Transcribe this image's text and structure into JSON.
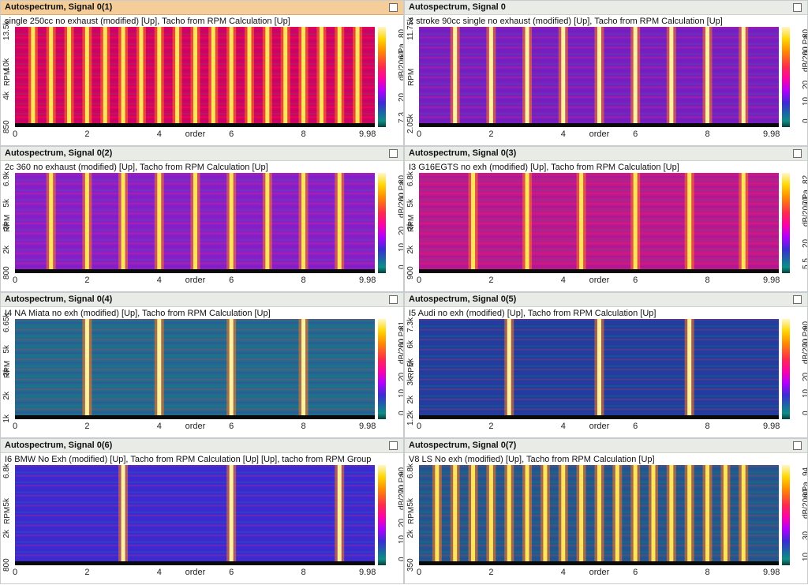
{
  "panels": [
    {
      "title": "Autospectrum, Signal 0(1)",
      "subtitle": "single 250cc no exhaust (modified) [Up], Tacho from RPM Calculation [Up]",
      "active": true,
      "y_ticks": [
        "13.5k",
        "10k",
        "4k",
        "850"
      ],
      "y_title": "RPM",
      "colorbar_labels": [
        "80",
        "60",
        "dB/20u Pa",
        "20",
        "7.3"
      ],
      "x_ticks": [
        "0",
        "2",
        "4",
        "6",
        "8"
      ],
      "x_title": "order",
      "x_end": "9.98",
      "spectrogram": {
        "bg": "#d9005a",
        "bands": [
          0.5,
          1.0,
          1.5,
          2.0,
          2.5,
          3.0,
          3.5,
          4.0,
          4.5,
          5.0,
          5.5,
          6.0,
          6.5,
          7.0,
          7.5,
          8.0,
          8.5,
          9.0,
          9.5
        ],
        "accent": "#ffe45c"
      }
    },
    {
      "title": "Autospectrum, Signal 0",
      "subtitle": "2 stroke 90cc single no exhaust (modified) [Up], Tacho from RPM Calculation [Up]",
      "active": false,
      "y_ticks": [
        "11.75k",
        "",
        "2.05k"
      ],
      "y_title": "RPM",
      "colorbar_labels": [
        "80",
        "60",
        "dB/20u Pa",
        "20",
        "10",
        "0"
      ],
      "x_ticks": [
        "0",
        "2",
        "4",
        "6",
        "8"
      ],
      "x_title": "order",
      "x_end": "9.98",
      "spectrogram": {
        "bg": "#7a1ec0",
        "bands": [
          1.0,
          2.0,
          3.0,
          4.0,
          5.0,
          6.0,
          7.0,
          8.0,
          9.0
        ],
        "accent": "#fff1a0"
      }
    },
    {
      "title": "Autospectrum, Signal 0(2)",
      "subtitle": "2c 360 no exhaust (modified) [Up], Tacho from RPM Calculation [Up]",
      "active": false,
      "y_ticks": [
        "6.9k",
        "5k",
        "3k",
        "2k",
        "800"
      ],
      "y_title": "RPM",
      "colorbar_labels": [
        "80",
        "60",
        "dB/20u Pa",
        "20",
        "10",
        "0"
      ],
      "x_ticks": [
        "0",
        "2",
        "4",
        "6",
        "8"
      ],
      "x_title": "order",
      "x_end": "9.98",
      "spectrogram": {
        "bg": "#8a1fc8",
        "bands": [
          1.0,
          2.0,
          3.0,
          4.0,
          5.0,
          6.0,
          7.0,
          8.0,
          9.0
        ],
        "accent": "#ffe45c"
      }
    },
    {
      "title": "Autospectrum, Signal 0(3)",
      "subtitle": "I3 G16EGTS no exh (modified) [Up], Tacho from RPM Calculation [Up]",
      "active": false,
      "y_ticks": [
        "6.8k",
        "5k",
        "3k",
        "2k",
        "900"
      ],
      "y_title": "RPM",
      "colorbar_labels": [
        "82",
        "70",
        "dB/20u Pa",
        "20",
        "5.5"
      ],
      "x_ticks": [
        "0",
        "2",
        "4",
        "6",
        "8"
      ],
      "x_title": "order",
      "x_end": "9.98",
      "spectrogram": {
        "bg": "#c0178a",
        "bands": [
          1.5,
          3.0,
          4.5,
          6.0,
          7.5,
          9.0
        ],
        "accent": "#ffe45c"
      }
    },
    {
      "title": "Autospectrum, Signal 0(4)",
      "subtitle": "I4 NA Miata no exh (modified) [Up], Tacho from RPM Calculation [Up]",
      "active": false,
      "y_ticks": [
        "6.65k",
        "5k",
        "3k",
        "2k",
        "1k"
      ],
      "y_title": "RPM",
      "colorbar_labels": [
        "81",
        "60",
        "dB/20u Pa",
        "20",
        "10",
        "0"
      ],
      "x_ticks": [
        "0",
        "2",
        "4",
        "6",
        "8"
      ],
      "x_title": "order",
      "x_end": "9.98",
      "spectrogram": {
        "bg": "#1f6d8a",
        "bands": [
          2.0,
          4.0,
          6.0,
          8.0
        ],
        "accent": "#fff1a0"
      }
    },
    {
      "title": "Autospectrum, Signal 0(5)",
      "subtitle": "I5 Audi no exh (modified) [Up], Tacho from RPM Calculation [Up]",
      "active": false,
      "y_ticks": [
        "7.3k",
        "6k",
        "5k",
        "3k",
        "2k",
        "1.2k"
      ],
      "y_title": "RPM",
      "colorbar_labels": [
        "90",
        "70",
        "dB/20u Pa",
        "20",
        "10",
        "0"
      ],
      "x_ticks": [
        "0",
        "2",
        "4",
        "6",
        "8"
      ],
      "x_title": "order",
      "x_end": "9.98",
      "spectrogram": {
        "bg": "#1f3f9a",
        "bands": [
          2.5,
          5.0,
          7.5
        ],
        "accent": "#fff1a0"
      }
    },
    {
      "title": "Autospectrum, Signal 0(6)",
      "subtitle": "I6 BMW No Exh (modified) [Up], Tacho from RPM Calculation [Up] [Up], tacho from RPM Group",
      "active": false,
      "y_ticks": [
        "6.8k",
        "5k",
        "2k",
        "800"
      ],
      "y_title": "RPM",
      "colorbar_labels": [
        "90",
        "70",
        "dB/20u Pa",
        "20",
        "10",
        "0"
      ],
      "x_ticks": [
        "0",
        "2",
        "4",
        "6",
        "8"
      ],
      "x_title": "order",
      "x_end": "9.98",
      "spectrogram": {
        "bg": "#3a2bd0",
        "bands": [
          3.0,
          6.0,
          9.0
        ],
        "accent": "#fff1a0"
      }
    },
    {
      "title": "Autospectrum, Signal 0(7)",
      "subtitle": "V8 LS No exh (modified) [Up], Tacho from RPM Calculation [Up]",
      "active": false,
      "y_ticks": [
        "6.8k",
        "5k",
        "2k",
        "350"
      ],
      "y_title": "RPM",
      "colorbar_labels": [
        "94",
        "80",
        "dB/20u Pa",
        "30",
        "10"
      ],
      "x_ticks": [
        "0",
        "2",
        "4",
        "6",
        "8"
      ],
      "x_title": "order",
      "x_end": "9.98",
      "spectrogram": {
        "bg": "#1f5a88",
        "bands": [
          0.5,
          1.0,
          1.5,
          2.0,
          2.5,
          3.0,
          3.5,
          4.0,
          4.5,
          5.0,
          5.5,
          6.0,
          6.5,
          7.0,
          7.5,
          8.0,
          8.5,
          9.0
        ],
        "accent": "#ffe45c"
      }
    }
  ]
}
